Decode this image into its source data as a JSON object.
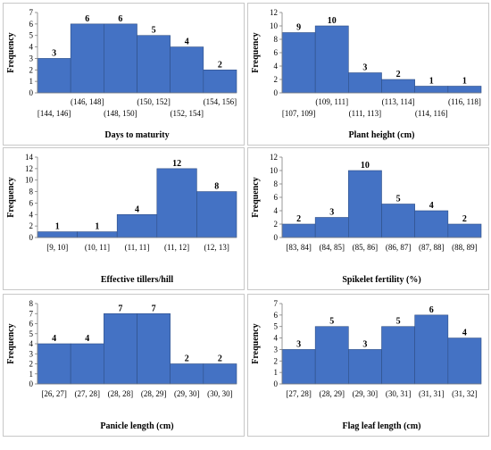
{
  "figure": {
    "bar_color": "#4472c4",
    "bar_edge_color": "#2f4f86",
    "panel_border_color": "#c8c8c8"
  },
  "chart_data": [
    {
      "type": "bar",
      "title": "",
      "xlabel": "Days to maturity",
      "ylabel": "Frequency",
      "ylim": [
        0,
        7
      ],
      "yticks": [
        0,
        1,
        2,
        3,
        4,
        5,
        6,
        7
      ],
      "categories": [
        "[144, 146]",
        "(146, 148]",
        "(148, 150]",
        "(150, 152]",
        "(152, 154]",
        "(154, 156]"
      ],
      "values": [
        3,
        6,
        6,
        5,
        4,
        2
      ],
      "grid": false,
      "label_stagger": true
    },
    {
      "type": "bar",
      "title": "",
      "xlabel": "Plant height (cm)",
      "ylabel": "Frequency",
      "ylim": [
        0,
        12
      ],
      "yticks": [
        0,
        2,
        4,
        6,
        8,
        10,
        12
      ],
      "categories": [
        "[107, 109]",
        "(109, 111]",
        "(111, 113]",
        "(113, 114]",
        "(114, 116]",
        "(116, 118]"
      ],
      "values": [
        9,
        10,
        3,
        2,
        1,
        1
      ],
      "grid": false,
      "label_stagger": true
    },
    {
      "type": "bar",
      "title": "",
      "xlabel": "Effective tillers/hill",
      "ylabel": "Frequency",
      "ylim": [
        0,
        14
      ],
      "yticks": [
        0,
        2,
        4,
        6,
        8,
        10,
        12,
        14
      ],
      "categories": [
        "[9, 10]",
        "(10, 11]",
        "(11, 11]",
        "(11, 12]",
        "(12, 13]"
      ],
      "values": [
        1,
        1,
        4,
        12,
        8
      ],
      "grid": false,
      "label_stagger": false
    },
    {
      "type": "bar",
      "title": "",
      "xlabel": "Spikelet fertility (%)",
      "ylabel": "Frequency",
      "ylim": [
        0,
        12
      ],
      "yticks": [
        0,
        2,
        4,
        6,
        8,
        10,
        12
      ],
      "categories": [
        "[83, 84]",
        "(84, 85]",
        "(85, 86]",
        "(86, 87]",
        "(87, 88]",
        "(88, 89]"
      ],
      "values": [
        2,
        3,
        10,
        5,
        4,
        2
      ],
      "grid": false,
      "label_stagger": false
    },
    {
      "type": "bar",
      "title": "",
      "xlabel": "Panicle length (cm)",
      "ylabel": "Frequency",
      "ylim": [
        0,
        8
      ],
      "yticks": [
        0,
        1,
        2,
        3,
        4,
        5,
        6,
        7,
        8
      ],
      "categories": [
        "[26, 27]",
        "(27, 28]",
        "(28, 28]",
        "(28, 29]",
        "(29, 30]",
        "(30, 30]"
      ],
      "values": [
        4,
        4,
        7,
        7,
        2,
        2
      ],
      "grid": false,
      "label_stagger": false
    },
    {
      "type": "bar",
      "title": "",
      "xlabel": "Flag leaf length (cm)",
      "ylabel": "Frequency",
      "ylim": [
        0,
        7
      ],
      "yticks": [
        0,
        1,
        2,
        3,
        4,
        5,
        6,
        7
      ],
      "categories": [
        "[27, 28]",
        "(28, 29]",
        "(29, 30]",
        "(30, 31]",
        "(31, 31]",
        "(31, 32]"
      ],
      "values": [
        3,
        5,
        3,
        5,
        6,
        4
      ],
      "grid": false,
      "label_stagger": false
    }
  ]
}
